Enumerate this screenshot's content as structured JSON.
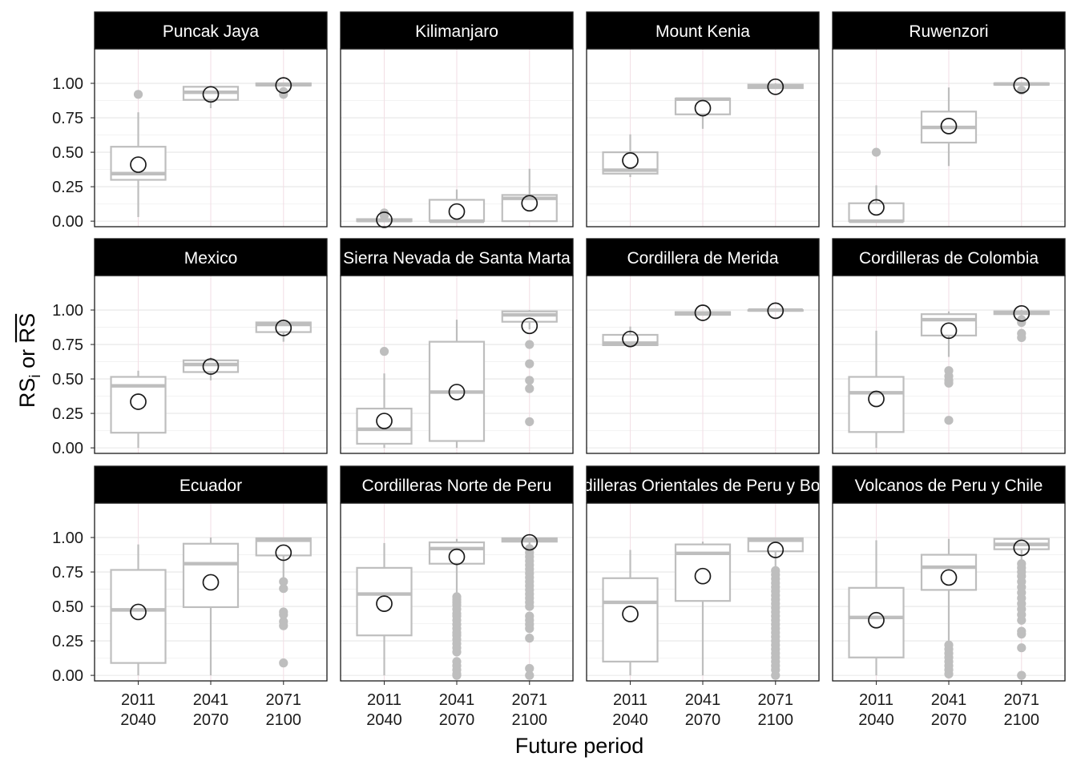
{
  "chart_data": {
    "type": "boxplot",
    "xlabel": "Future period",
    "ylabel": {
      "prefix": "RS",
      "subscript": "i",
      "connector": "or",
      "overlined": "RS"
    },
    "ylim": [
      -0.04,
      1.25
    ],
    "yticks": [
      0.0,
      0.25,
      0.5,
      0.75,
      1.0
    ],
    "ytick_labels": [
      "0.00",
      "0.25",
      "0.50",
      "0.75",
      "1.00"
    ],
    "categories": [
      {
        "line1": "2011",
        "line2": "2040"
      },
      {
        "line1": "2041",
        "line2": "2070"
      },
      {
        "line1": "2071",
        "line2": "2100"
      }
    ],
    "grid": true,
    "colors": {
      "box": "#bebebe",
      "outlier": "#bebebe",
      "mean_marker_stroke": "#1a1a1a",
      "strip_bg": "#000000",
      "strip_text": "#ffffff",
      "panel_border": "#1a1a1a",
      "grid_major": "#e6e6e6",
      "grid_minor": "#f2f2f2",
      "grid_vertical": "#f3e0e6"
    },
    "panels": [
      {
        "title": "Puncak Jaya",
        "boxes": [
          {
            "lower_whisker": 0.03,
            "q1": 0.3,
            "median": 0.345,
            "q3": 0.54,
            "upper_whisker": 0.79,
            "mean": 0.41,
            "outliers": [
              0.92
            ]
          },
          {
            "lower_whisker": 0.82,
            "q1": 0.88,
            "median": 0.935,
            "q3": 0.975,
            "upper_whisker": 0.98,
            "mean": 0.92,
            "outliers": []
          },
          {
            "lower_whisker": 0.98,
            "q1": 0.985,
            "median": 0.99,
            "q3": 1.0,
            "upper_whisker": 1.0,
            "mean": 0.985,
            "outliers": [
              0.92,
              0.94
            ]
          }
        ]
      },
      {
        "title": "Kilimanjaro",
        "boxes": [
          {
            "lower_whisker": 0.0,
            "q1": 0.0,
            "median": 0.005,
            "q3": 0.015,
            "upper_whisker": 0.03,
            "mean": 0.01,
            "outliers": [
              0.06,
              0.04
            ]
          },
          {
            "lower_whisker": 0.0,
            "q1": 0.0,
            "median": 0.0,
            "q3": 0.155,
            "upper_whisker": 0.23,
            "mean": 0.07,
            "outliers": []
          },
          {
            "lower_whisker": 0.0,
            "q1": 0.0,
            "median": 0.165,
            "q3": 0.19,
            "upper_whisker": 0.38,
            "mean": 0.13,
            "outliers": []
          }
        ]
      },
      {
        "title": "Mount Kenia",
        "boxes": [
          {
            "lower_whisker": 0.32,
            "q1": 0.345,
            "median": 0.37,
            "q3": 0.5,
            "upper_whisker": 0.63,
            "mean": 0.44,
            "outliers": []
          },
          {
            "lower_whisker": 0.67,
            "q1": 0.775,
            "median": 0.885,
            "q3": 0.89,
            "upper_whisker": 0.89,
            "mean": 0.82,
            "outliers": []
          },
          {
            "lower_whisker": 0.96,
            "q1": 0.965,
            "median": 0.975,
            "q3": 0.99,
            "upper_whisker": 1.0,
            "mean": 0.975,
            "outliers": []
          }
        ]
      },
      {
        "title": "Ruwenzori",
        "boxes": [
          {
            "lower_whisker": 0.0,
            "q1": 0.0,
            "median": 0.0,
            "q3": 0.13,
            "upper_whisker": 0.26,
            "mean": 0.1,
            "outliers": [
              0.5
            ]
          },
          {
            "lower_whisker": 0.4,
            "q1": 0.57,
            "median": 0.68,
            "q3": 0.795,
            "upper_whisker": 0.97,
            "mean": 0.69,
            "outliers": []
          },
          {
            "lower_whisker": 0.98,
            "q1": 0.99,
            "median": 0.995,
            "q3": 1.0,
            "upper_whisker": 1.0,
            "mean": 0.985,
            "outliers": [
              0.95
            ]
          }
        ]
      },
      {
        "title": "Mexico",
        "boxes": [
          {
            "lower_whisker": 0.0,
            "q1": 0.11,
            "median": 0.45,
            "q3": 0.515,
            "upper_whisker": 0.56,
            "mean": 0.335,
            "outliers": []
          },
          {
            "lower_whisker": 0.49,
            "q1": 0.55,
            "median": 0.605,
            "q3": 0.635,
            "upper_whisker": 0.655,
            "mean": 0.59,
            "outliers": []
          },
          {
            "lower_whisker": 0.77,
            "q1": 0.84,
            "median": 0.895,
            "q3": 0.91,
            "upper_whisker": 0.91,
            "mean": 0.87,
            "outliers": []
          }
        ]
      },
      {
        "title": "Sierra Nevada de Santa Marta",
        "boxes": [
          {
            "lower_whisker": 0.0,
            "q1": 0.03,
            "median": 0.135,
            "q3": 0.285,
            "upper_whisker": 0.54,
            "mean": 0.195,
            "outliers": [
              0.7
            ]
          },
          {
            "lower_whisker": 0.0,
            "q1": 0.05,
            "median": 0.405,
            "q3": 0.77,
            "upper_whisker": 0.93,
            "mean": 0.405,
            "outliers": []
          },
          {
            "lower_whisker": 0.86,
            "q1": 0.915,
            "median": 0.965,
            "q3": 0.99,
            "upper_whisker": 1.0,
            "mean": 0.885,
            "outliers": [
              0.75,
              0.61,
              0.49,
              0.43,
              0.19
            ]
          }
        ]
      },
      {
        "title": "Cordillera de Merida",
        "boxes": [
          {
            "lower_whisker": 0.735,
            "q1": 0.745,
            "median": 0.76,
            "q3": 0.82,
            "upper_whisker": 0.88,
            "mean": 0.79,
            "outliers": []
          },
          {
            "lower_whisker": 0.96,
            "q1": 0.965,
            "median": 0.975,
            "q3": 0.985,
            "upper_whisker": 0.99,
            "mean": 0.98,
            "outliers": []
          },
          {
            "lower_whisker": 0.995,
            "q1": 0.995,
            "median": 1.0,
            "q3": 1.0,
            "upper_whisker": 1.0,
            "mean": 0.995,
            "outliers": []
          }
        ]
      },
      {
        "title": "Cordilleras de Colombia",
        "boxes": [
          {
            "lower_whisker": 0.0,
            "q1": 0.115,
            "median": 0.4,
            "q3": 0.515,
            "upper_whisker": 0.85,
            "mean": 0.355,
            "outliers": []
          },
          {
            "lower_whisker": 0.66,
            "q1": 0.815,
            "median": 0.93,
            "q3": 0.97,
            "upper_whisker": 0.99,
            "mean": 0.85,
            "outliers": [
              0.56,
              0.52,
              0.49,
              0.47,
              0.2
            ]
          },
          {
            "lower_whisker": 0.96,
            "q1": 0.97,
            "median": 0.98,
            "q3": 0.99,
            "upper_whisker": 1.0,
            "mean": 0.975,
            "outliers": [
              0.93,
              0.91,
              0.83,
              0.8
            ]
          }
        ]
      },
      {
        "title": "Ecuador",
        "boxes": [
          {
            "lower_whisker": 0.0,
            "q1": 0.09,
            "median": 0.475,
            "q3": 0.765,
            "upper_whisker": 0.95,
            "mean": 0.46,
            "outliers": []
          },
          {
            "lower_whisker": 0.0,
            "q1": 0.495,
            "median": 0.81,
            "q3": 0.955,
            "upper_whisker": 1.0,
            "mean": 0.675,
            "outliers": []
          },
          {
            "lower_whisker": 0.71,
            "q1": 0.87,
            "median": 0.98,
            "q3": 0.995,
            "upper_whisker": 1.0,
            "mean": 0.89,
            "outliers": [
              0.68,
              0.63,
              0.46,
              0.44,
              0.39,
              0.36,
              0.09
            ]
          }
        ]
      },
      {
        "title": "Cordilleras Norte de Peru",
        "boxes": [
          {
            "lower_whisker": 0.0,
            "q1": 0.29,
            "median": 0.59,
            "q3": 0.78,
            "upper_whisker": 0.96,
            "mean": 0.52,
            "outliers": []
          },
          {
            "lower_whisker": 0.6,
            "q1": 0.81,
            "median": 0.92,
            "q3": 0.965,
            "upper_whisker": 0.99,
            "mean": 0.86,
            "outliers": [
              0.57,
              0.55,
              0.53,
              0.51,
              0.48,
              0.45,
              0.43,
              0.4,
              0.37,
              0.34,
              0.31,
              0.29,
              0.26,
              0.23,
              0.2,
              0.17,
              0.1,
              0.07,
              0.04,
              0.01,
              0.0
            ]
          },
          {
            "lower_whisker": 0.93,
            "q1": 0.97,
            "median": 0.98,
            "q3": 0.995,
            "upper_whisker": 1.0,
            "mean": 0.965,
            "outliers": [
              0.92,
              0.89,
              0.86,
              0.83,
              0.8,
              0.77,
              0.74,
              0.71,
              0.68,
              0.65,
              0.62,
              0.59,
              0.56,
              0.53,
              0.5,
              0.43,
              0.4,
              0.37,
              0.34,
              0.27,
              0.05,
              0.0
            ]
          }
        ]
      },
      {
        "title": "Cordilleras Orientales de Peru y Bolivia",
        "boxes": [
          {
            "lower_whisker": 0.0,
            "q1": 0.1,
            "median": 0.53,
            "q3": 0.705,
            "upper_whisker": 0.91,
            "mean": 0.445,
            "outliers": []
          },
          {
            "lower_whisker": 0.0,
            "q1": 0.54,
            "median": 0.885,
            "q3": 0.95,
            "upper_whisker": 0.97,
            "mean": 0.72,
            "outliers": []
          },
          {
            "lower_whisker": 0.78,
            "q1": 0.9,
            "median": 0.98,
            "q3": 0.995,
            "upper_whisker": 1.0,
            "mean": 0.91,
            "outliers": [
              0.76,
              0.73,
              0.7,
              0.67,
              0.64,
              0.61,
              0.58,
              0.55,
              0.52,
              0.49,
              0.46,
              0.43,
              0.4,
              0.37,
              0.34,
              0.31,
              0.28,
              0.25,
              0.22,
              0.19,
              0.16,
              0.13,
              0.1,
              0.07,
              0.04,
              0.0
            ]
          }
        ]
      },
      {
        "title": "Volcanos de Peru y Chile",
        "boxes": [
          {
            "lower_whisker": 0.0,
            "q1": 0.13,
            "median": 0.42,
            "q3": 0.635,
            "upper_whisker": 0.98,
            "mean": 0.4,
            "outliers": []
          },
          {
            "lower_whisker": 0.25,
            "q1": 0.62,
            "median": 0.785,
            "q3": 0.875,
            "upper_whisker": 0.99,
            "mean": 0.71,
            "outliers": [
              0.22,
              0.19,
              0.16,
              0.13,
              0.1,
              0.07,
              0.04,
              0.01
            ]
          },
          {
            "lower_whisker": 0.83,
            "q1": 0.915,
            "median": 0.95,
            "q3": 0.99,
            "upper_whisker": 1.0,
            "mean": 0.925,
            "outliers": [
              0.81,
              0.78,
              0.75,
              0.72,
              0.68,
              0.64,
              0.6,
              0.56,
              0.52,
              0.48,
              0.44,
              0.4,
              0.32,
              0.3,
              0.2,
              0.0
            ]
          }
        ]
      }
    ]
  }
}
